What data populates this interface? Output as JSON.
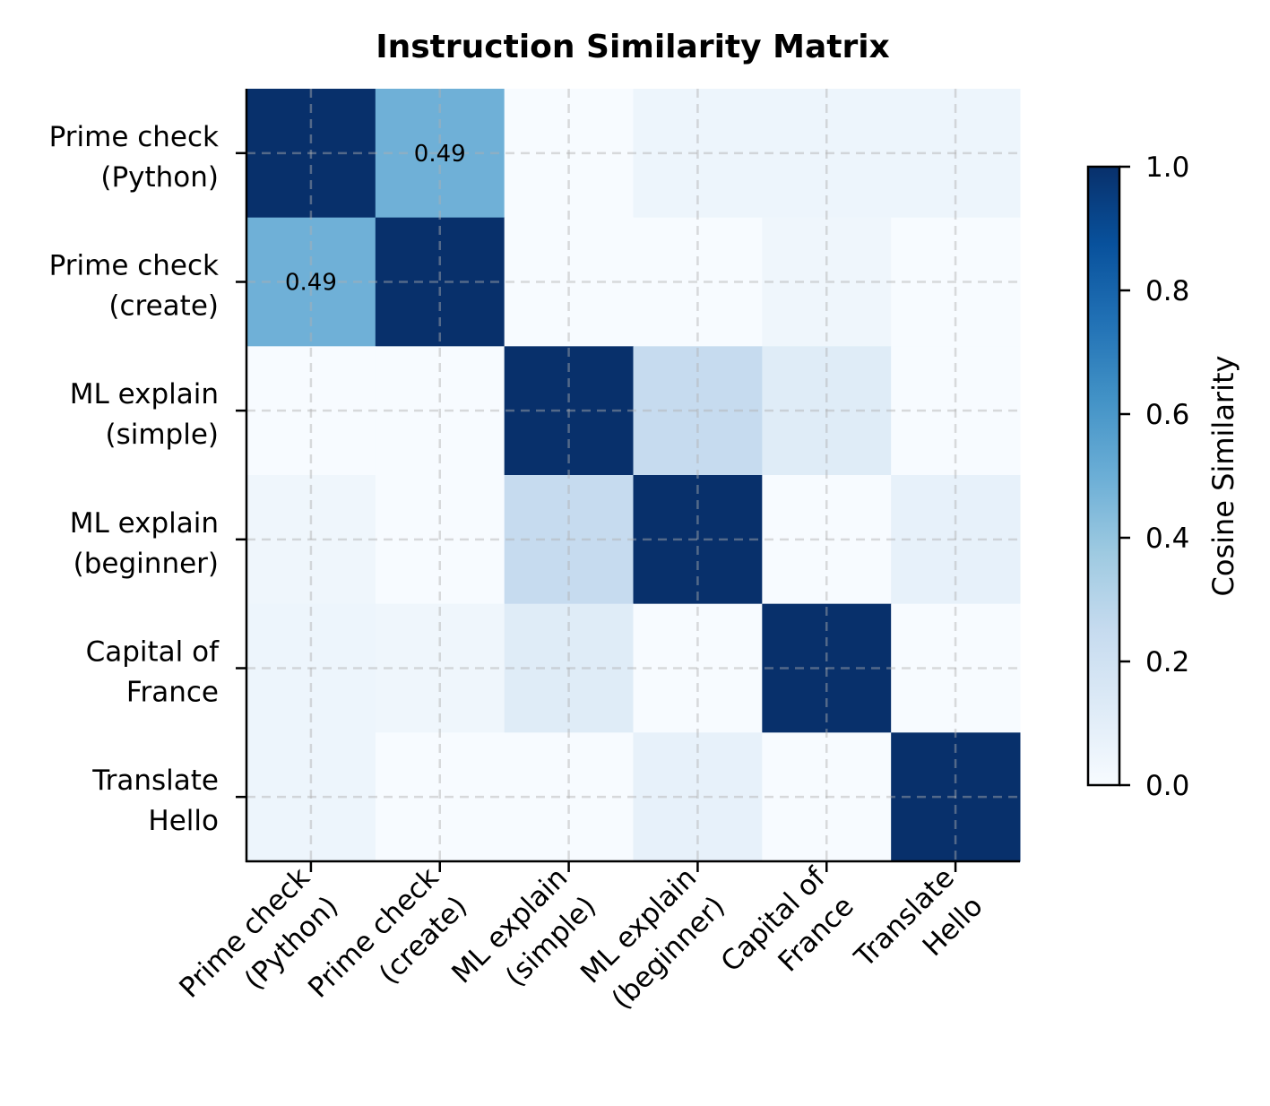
{
  "chart_data": {
    "type": "heatmap",
    "title": "Instruction Similarity Matrix",
    "row_labels": [
      [
        "Prime check",
        "(Python)"
      ],
      [
        "Prime check",
        "(create)"
      ],
      [
        "ML explain",
        "(simple)"
      ],
      [
        "ML explain",
        "(beginner)"
      ],
      [
        "Capital of",
        "France"
      ],
      [
        "Translate",
        "Hello"
      ]
    ],
    "col_labels": [
      [
        "Prime check",
        "(Python)"
      ],
      [
        "Prime check",
        "(create)"
      ],
      [
        "ML explain",
        "(simple)"
      ],
      [
        "ML explain",
        "(beginner)"
      ],
      [
        "Capital of",
        "France"
      ],
      [
        "Translate",
        "Hello"
      ]
    ],
    "values": [
      [
        1.0,
        0.49,
        0.0,
        0.05,
        0.05,
        0.05
      ],
      [
        0.49,
        1.0,
        0.0,
        0.0,
        0.04,
        0.0
      ],
      [
        0.0,
        0.0,
        1.0,
        0.25,
        0.12,
        0.0
      ],
      [
        0.04,
        0.0,
        0.25,
        1.0,
        0.0,
        0.08
      ],
      [
        0.05,
        0.04,
        0.12,
        0.0,
        1.0,
        0.0
      ],
      [
        0.05,
        0.0,
        0.0,
        0.08,
        0.0,
        1.0
      ]
    ],
    "annotations": [
      {
        "row": 0,
        "col": 1,
        "text": "0.49"
      },
      {
        "row": 1,
        "col": 0,
        "text": "0.49"
      }
    ],
    "colormap": "Blues",
    "colormap_stops": [
      "#f7fbff",
      "#deebf7",
      "#c6dbef",
      "#9ecae1",
      "#6baed6",
      "#4292c6",
      "#2171b5",
      "#08519c",
      "#08306b"
    ],
    "vmin": 0.0,
    "vmax": 1.0,
    "grid": true,
    "colorbar": {
      "label": "Cosine Similarity",
      "ticks": [
        "0.0",
        "0.2",
        "0.4",
        "0.6",
        "0.8",
        "1.0"
      ],
      "placement": "right"
    }
  }
}
